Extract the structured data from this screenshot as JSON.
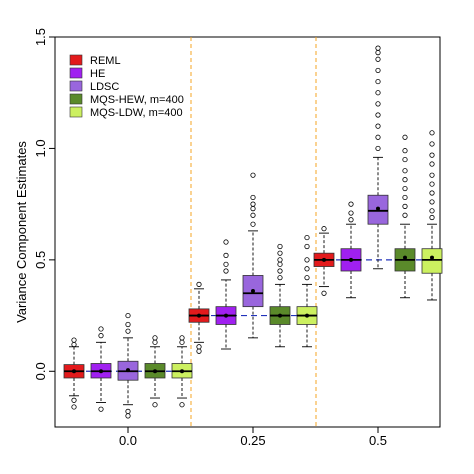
{
  "chart_data": {
    "type": "boxplot",
    "title": "",
    "xlabel": "",
    "ylabel": "Variance Component Estimates",
    "ylim": [
      -0.25,
      1.5
    ],
    "y_ticks": [
      "0.0",
      "0.5",
      "1.0",
      "1.5"
    ],
    "y_tick_values": [
      0.0,
      0.5,
      1.0,
      1.5
    ],
    "groups": [
      "0.0",
      "0.25",
      "0.5"
    ],
    "true_values": [
      0.0,
      0.25,
      0.5
    ],
    "grid": false,
    "legend_position": "top-left",
    "series": [
      {
        "name": "REML",
        "color": "#e31a1c",
        "boxes": [
          {
            "lower_whisker": -0.11,
            "q1": -0.03,
            "median": 0.0,
            "q3": 0.03,
            "upper_whisker": 0.11,
            "mean": 0.0,
            "outliers": [
              -0.16,
              -0.13,
              0.12,
              0.14
            ]
          },
          {
            "lower_whisker": 0.13,
            "q1": 0.22,
            "median": 0.25,
            "q3": 0.28,
            "upper_whisker": 0.37,
            "mean": 0.25,
            "outliers": [
              0.09,
              0.11,
              0.39
            ]
          },
          {
            "lower_whisker": 0.38,
            "q1": 0.47,
            "median": 0.5,
            "q3": 0.53,
            "upper_whisker": 0.62,
            "mean": 0.5,
            "outliers": [
              0.35,
              0.64
            ]
          }
        ]
      },
      {
        "name": "HE",
        "color": "#a020f0",
        "boxes": [
          {
            "lower_whisker": -0.14,
            "q1": -0.03,
            "median": 0.0,
            "q3": 0.035,
            "upper_whisker": 0.13,
            "mean": 0.0,
            "outliers": [
              -0.17,
              0.16,
              0.19
            ]
          },
          {
            "lower_whisker": 0.1,
            "q1": 0.21,
            "median": 0.25,
            "q3": 0.29,
            "upper_whisker": 0.41,
            "mean": 0.25,
            "outliers": [
              0.45,
              0.48,
              0.52,
              0.58
            ]
          },
          {
            "lower_whisker": 0.33,
            "q1": 0.45,
            "median": 0.5,
            "q3": 0.55,
            "upper_whisker": 0.66,
            "mean": 0.5,
            "outliers": [
              0.68,
              0.71,
              0.75
            ]
          }
        ]
      },
      {
        "name": "LDSC",
        "color": "#9966dd",
        "boxes": [
          {
            "lower_whisker": -0.15,
            "q1": -0.04,
            "median": 0.0,
            "q3": 0.045,
            "upper_whisker": 0.15,
            "mean": 0.005,
            "outliers": [
              -0.2,
              -0.18,
              0.18,
              0.21,
              0.25
            ]
          },
          {
            "lower_whisker": 0.15,
            "q1": 0.29,
            "median": 0.35,
            "q3": 0.43,
            "upper_whisker": 0.63,
            "mean": 0.36,
            "outliers": [
              0.66,
              0.7,
              0.73,
              0.75,
              0.78,
              0.88
            ]
          },
          {
            "lower_whisker": 0.46,
            "q1": 0.66,
            "median": 0.72,
            "q3": 0.79,
            "upper_whisker": 0.96,
            "mean": 0.73,
            "outliers": [
              1.0,
              1.05,
              1.1,
              1.15,
              1.2,
              1.25,
              1.3,
              1.35,
              1.4,
              1.43,
              1.45
            ]
          }
        ]
      },
      {
        "name": "MQS-HEW, m=400",
        "color": "#5a8a2a",
        "boxes": [
          {
            "lower_whisker": -0.12,
            "q1": -0.03,
            "median": 0.0,
            "q3": 0.035,
            "upper_whisker": 0.11,
            "mean": 0.0,
            "outliers": [
              -0.15,
              0.13,
              0.15
            ]
          },
          {
            "lower_whisker": 0.11,
            "q1": 0.21,
            "median": 0.25,
            "q3": 0.29,
            "upper_whisker": 0.39,
            "mean": 0.25,
            "outliers": [
              0.42,
              0.45,
              0.48,
              0.5,
              0.53,
              0.56
            ]
          },
          {
            "lower_whisker": 0.33,
            "q1": 0.45,
            "median": 0.5,
            "q3": 0.55,
            "upper_whisker": 0.66,
            "mean": 0.51,
            "outliers": [
              0.7,
              0.74,
              0.78,
              0.82,
              0.86,
              0.9,
              0.95,
              0.99,
              1.05
            ]
          }
        ]
      },
      {
        "name": "MQS-LDW, m=400",
        "color": "#ccf060",
        "boxes": [
          {
            "lower_whisker": -0.12,
            "q1": -0.03,
            "median": 0.0,
            "q3": 0.035,
            "upper_whisker": 0.11,
            "mean": 0.0,
            "outliers": [
              -0.15,
              0.13,
              0.15
            ]
          },
          {
            "lower_whisker": 0.11,
            "q1": 0.21,
            "median": 0.25,
            "q3": 0.29,
            "upper_whisker": 0.39,
            "mean": 0.25,
            "outliers": [
              0.42,
              0.46,
              0.5,
              0.56,
              0.6
            ]
          },
          {
            "lower_whisker": 0.32,
            "q1": 0.44,
            "median": 0.5,
            "q3": 0.55,
            "upper_whisker": 0.66,
            "mean": 0.51,
            "outliers": [
              0.69,
              0.72,
              0.76,
              0.8,
              0.84,
              0.88,
              0.93,
              0.97,
              1.02,
              1.07
            ]
          }
        ]
      }
    ]
  }
}
